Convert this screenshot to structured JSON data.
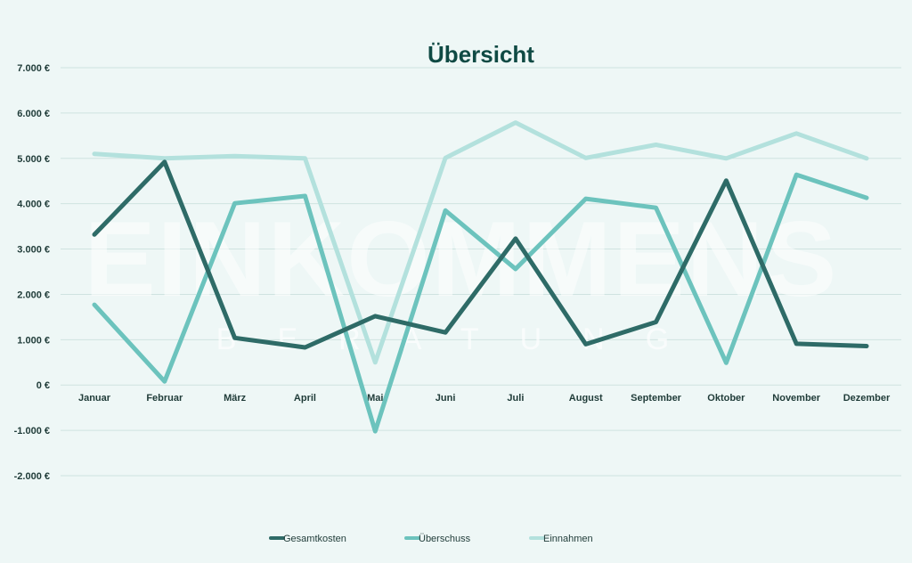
{
  "watermark": {
    "main": "EINKOMMENS",
    "sub": "BERATUNG"
  },
  "chart_data": {
    "type": "line",
    "title": "Übersicht",
    "categories": [
      "Januar",
      "Februar",
      "März",
      "April",
      "Mai",
      "Juni",
      "Juli",
      "August",
      "September",
      "Oktober",
      "November",
      "Dezember"
    ],
    "ylim": [
      -2000,
      7000
    ],
    "yticks": [
      7000,
      6000,
      5000,
      4000,
      3000,
      2000,
      1000,
      0,
      -1000,
      -2000
    ],
    "ytick_labels": [
      "7.000 €",
      "6.000 €",
      "5.000 €",
      "4.000 €",
      "3.000 €",
      "2.000 €",
      "1.000 €",
      "0 €",
      "-1.000 €",
      "-2.000 €"
    ],
    "grid": true,
    "legend_position": "bottom",
    "series": [
      {
        "name": "Gesamtkosten",
        "color": "#2e6b67",
        "values": [
          3320,
          4920,
          1040,
          830,
          1520,
          1160,
          3230,
          900,
          1390,
          4510,
          910,
          860
        ]
      },
      {
        "name": "Überschuss",
        "color": "#6cc3bd",
        "values": [
          1770,
          80,
          4010,
          4170,
          -1020,
          3850,
          2560,
          4110,
          3910,
          490,
          4640,
          4130
        ]
      },
      {
        "name": "Einnahmen",
        "color": "#b3e1dd",
        "values": [
          5100,
          5000,
          5050,
          5000,
          500,
          5010,
          5790,
          5010,
          5300,
          5000,
          5550,
          5000
        ]
      }
    ]
  }
}
